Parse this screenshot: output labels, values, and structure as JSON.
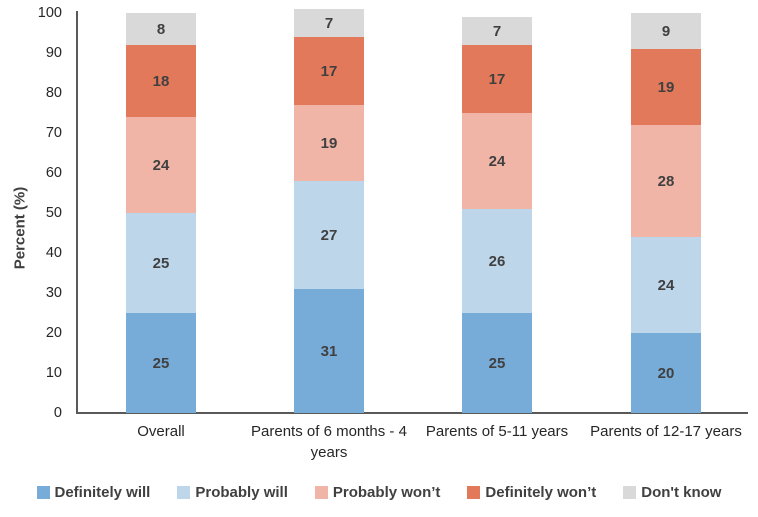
{
  "chart_data": {
    "type": "bar",
    "stacked": true,
    "title": "",
    "xlabel": "",
    "ylabel": "Percent (%)",
    "ylim": [
      0,
      100
    ],
    "yticks": [
      0,
      10,
      20,
      30,
      40,
      50,
      60,
      70,
      80,
      90,
      100
    ],
    "grid": false,
    "legend_position": "bottom",
    "categories": [
      "Overall",
      "Parents of 6 months - 4 years",
      "Parents of 5-11 years",
      "Parents of 12-17 years"
    ],
    "category_label_lines": [
      [
        "Overall"
      ],
      [
        "Parents of 6 months - 4",
        "years"
      ],
      [
        "Parents of 5-11 years"
      ],
      [
        "Parents of 12-17 years"
      ]
    ],
    "series": [
      {
        "name": "Definitely will",
        "color": "#77ABD8",
        "values": [
          25,
          31,
          25,
          20
        ]
      },
      {
        "name": "Probably will",
        "color": "#BDD6EA",
        "values": [
          25,
          27,
          26,
          24
        ]
      },
      {
        "name": "Probably won’t",
        "color": "#F0B5A6",
        "values": [
          24,
          19,
          24,
          28
        ]
      },
      {
        "name": "Definitely won’t",
        "color": "#E2795A",
        "values": [
          18,
          17,
          17,
          19
        ]
      },
      {
        "name": "Don't know",
        "color": "#D9D9D9",
        "values": [
          8,
          7,
          7,
          9
        ]
      }
    ],
    "value_label_color": "#404040",
    "axis_line_color": "#595959",
    "tick_label_color": "#262626"
  }
}
